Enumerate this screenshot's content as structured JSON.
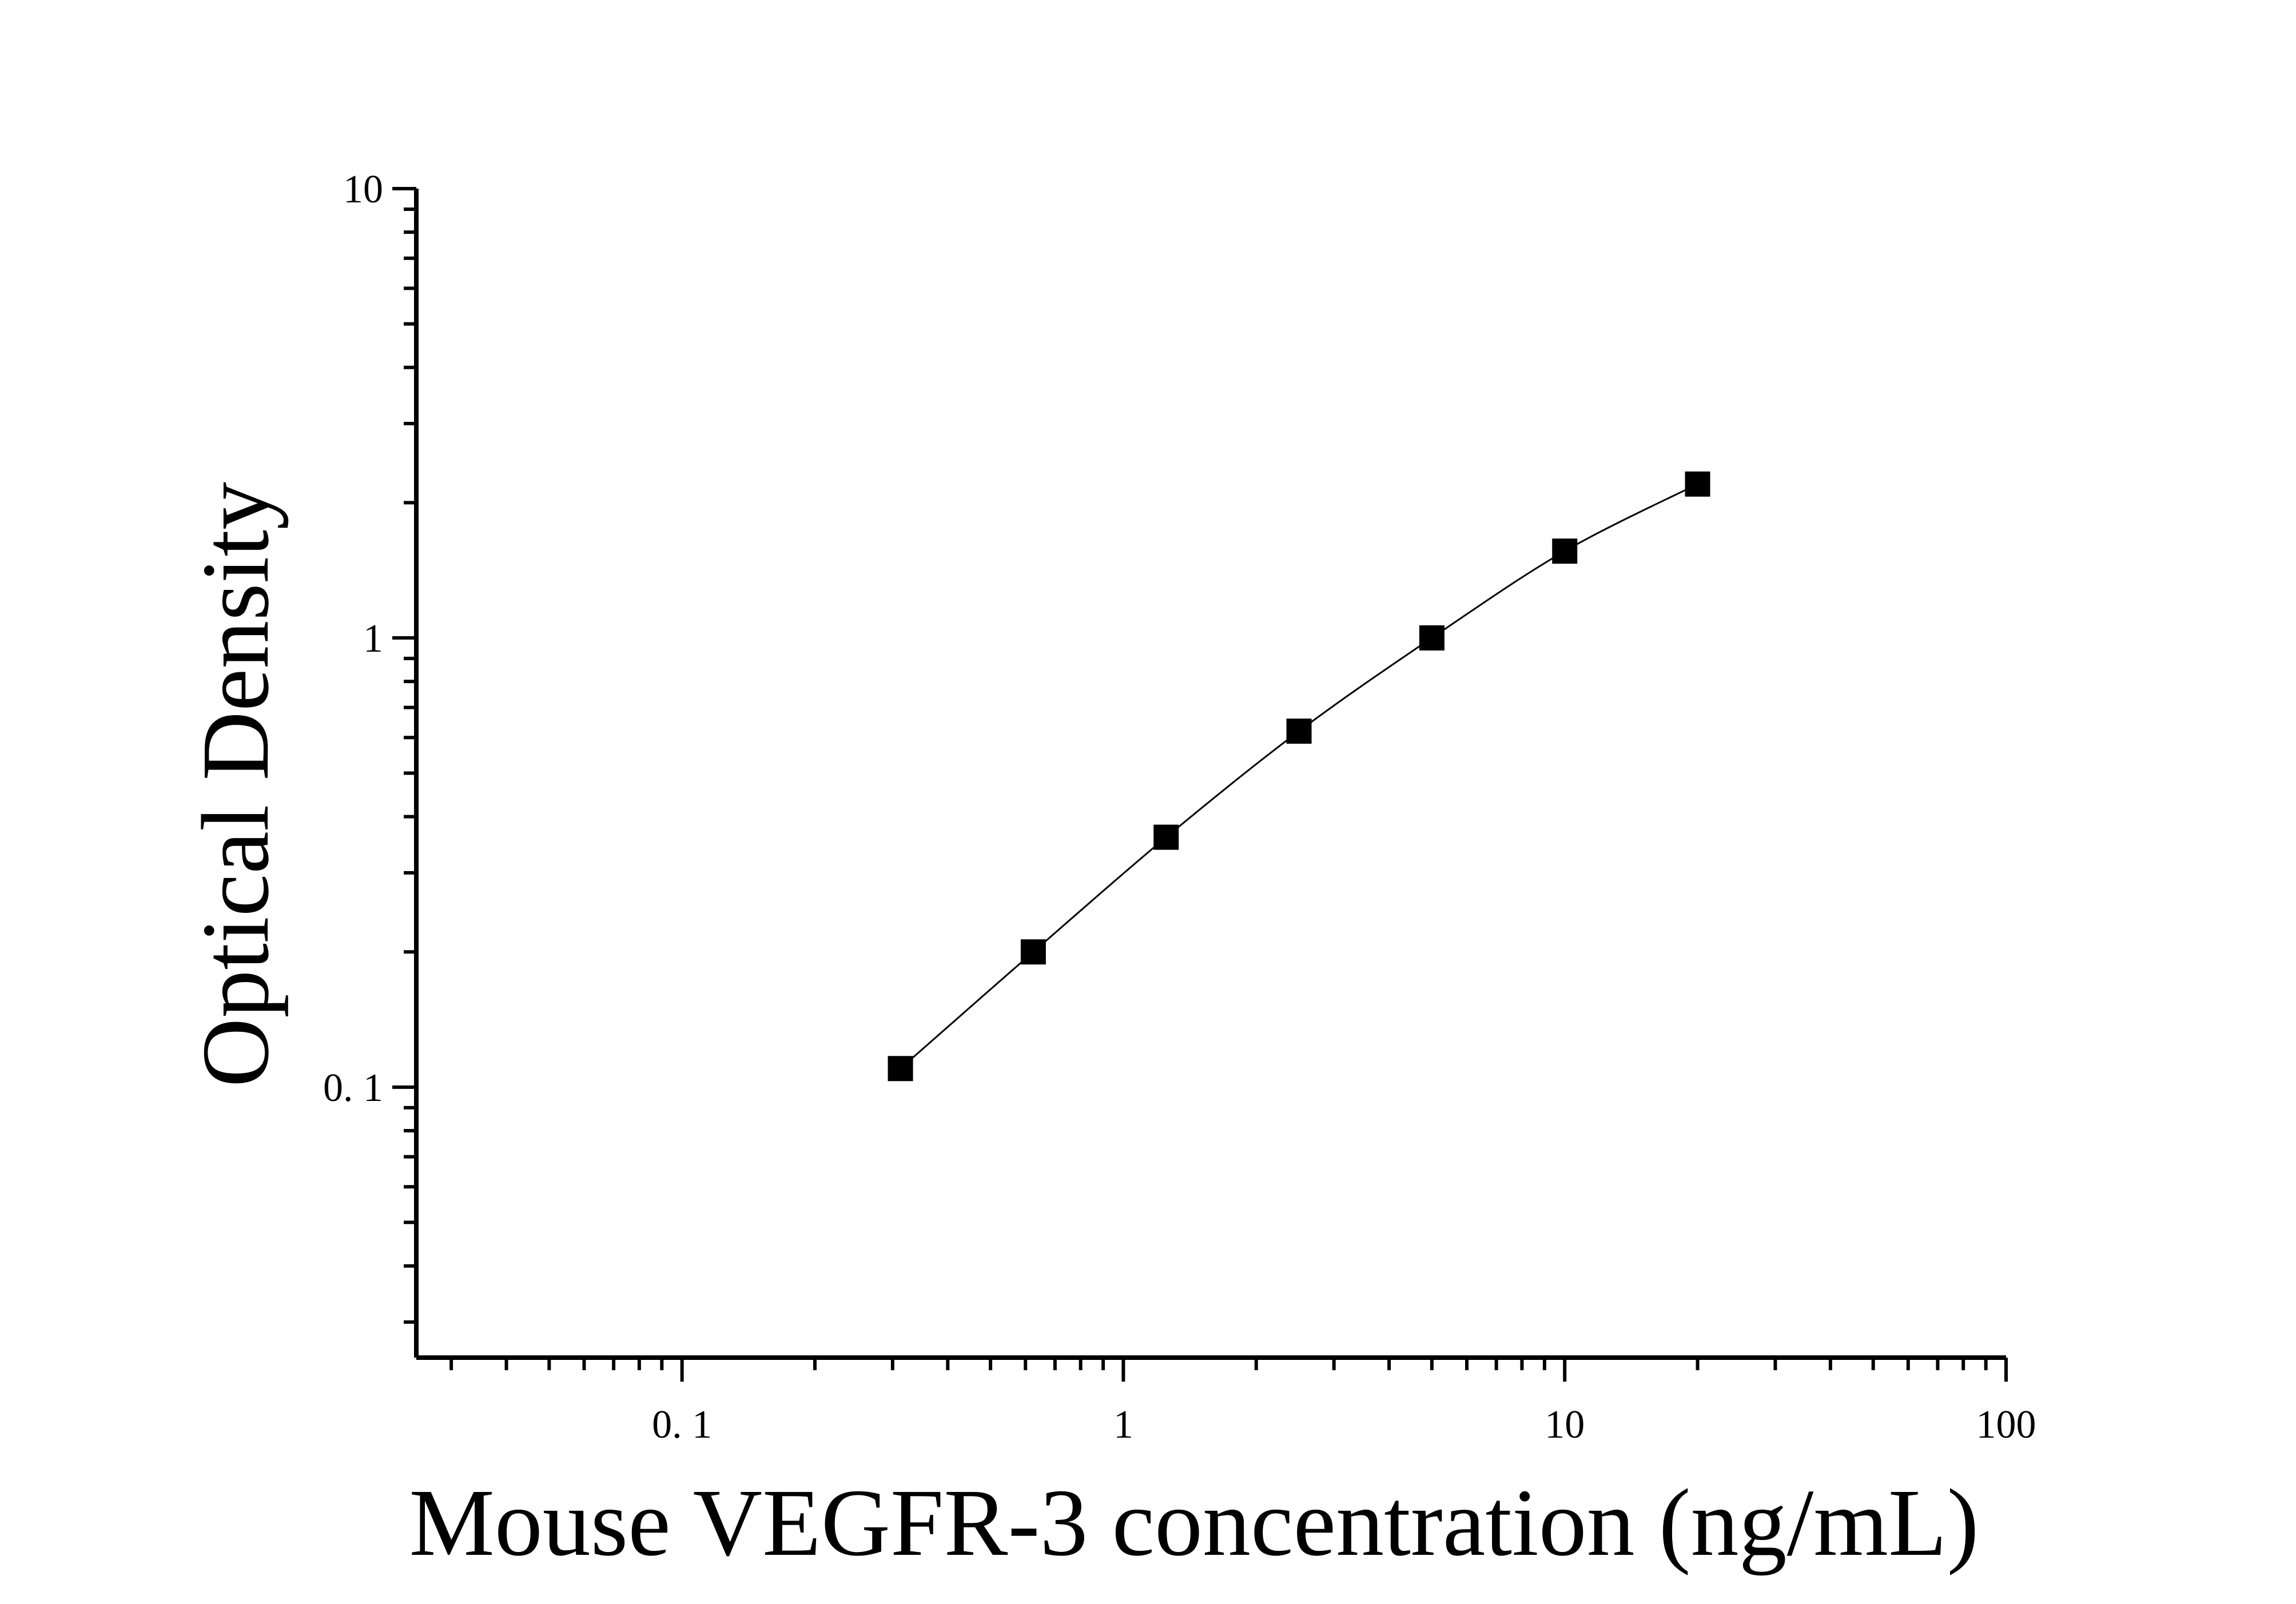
{
  "chart_data": {
    "type": "scatter",
    "title": "",
    "xlabel": "Mouse VEGFR-3 concentration (ng/mL)",
    "ylabel": "Optical Density",
    "x_scale": "log",
    "y_scale": "log",
    "xlim": [
      0.025,
      100
    ],
    "ylim": [
      0.025,
      10
    ],
    "x_ticks": [
      {
        "value": 0.1,
        "label": "0. 1"
      },
      {
        "value": 1,
        "label": "1"
      },
      {
        "value": 10,
        "label": "10"
      },
      {
        "value": 100,
        "label": "100"
      }
    ],
    "y_ticks": [
      {
        "value": 0.1,
        "label": "0. 1"
      },
      {
        "value": 1,
        "label": "1"
      },
      {
        "value": 10,
        "label": "10"
      }
    ],
    "grid": false,
    "legend": "none",
    "series": [
      {
        "marker": "square",
        "line": "smooth fit",
        "color": "#000000",
        "x": [
          0.3125,
          0.625,
          1.25,
          2.5,
          5,
          10,
          20
        ],
        "y": [
          0.11,
          0.2,
          0.36,
          0.62,
          1.0,
          1.56,
          2.2
        ]
      }
    ]
  }
}
